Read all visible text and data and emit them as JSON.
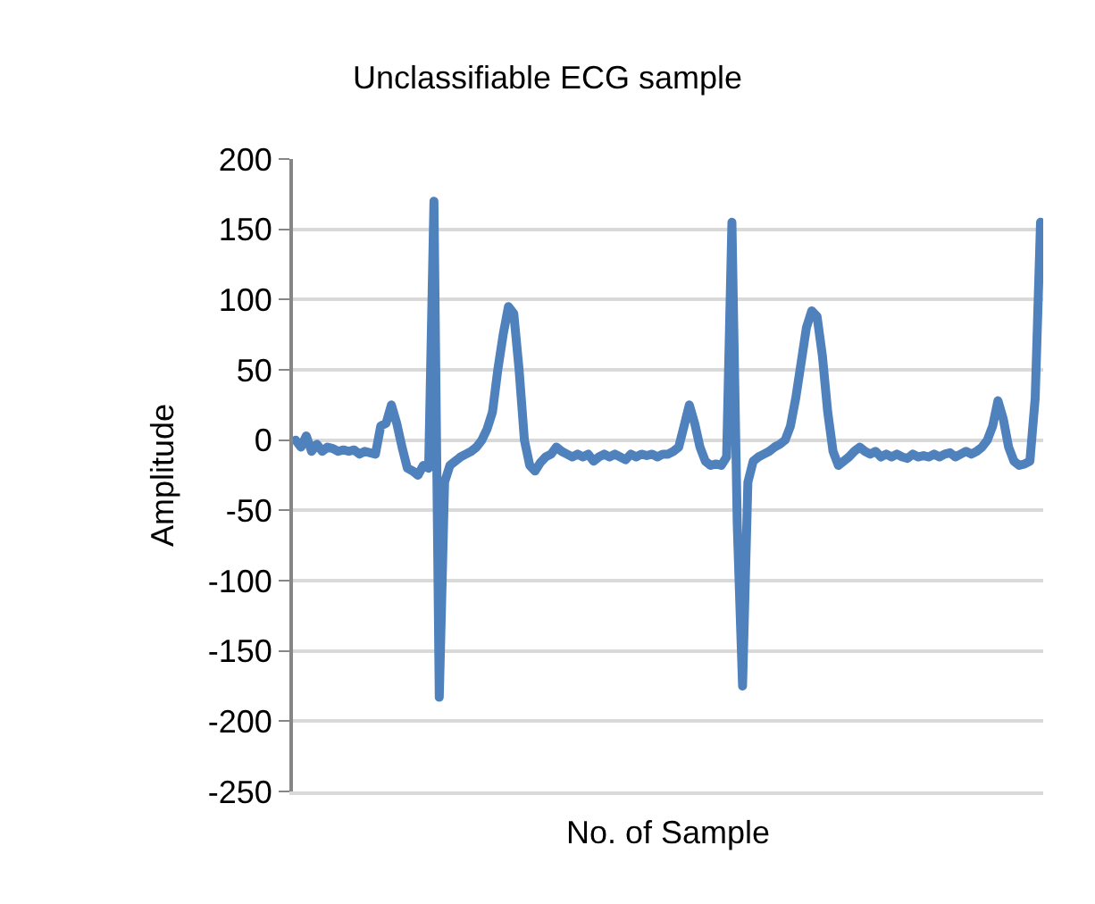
{
  "chart_data": {
    "type": "line",
    "title": "Unclassifiable ECG sample",
    "xlabel": "No. of Sample",
    "ylabel": "Amplitude",
    "categories": [
      null,
      null,
      null,
      null,
      null,
      null,
      null,
      null,
      null,
      null,
      null,
      null,
      null,
      null,
      null,
      null,
      null,
      null,
      null,
      null,
      null,
      null,
      null,
      null,
      null,
      null,
      null,
      null,
      null,
      null,
      null,
      null,
      null,
      null,
      null,
      null,
      null,
      null,
      null,
      null,
      null,
      null,
      null,
      null,
      null,
      null,
      null,
      null,
      null,
      null,
      null,
      null,
      null,
      null,
      null,
      null,
      null,
      null,
      null,
      null,
      null,
      null,
      null,
      null,
      null,
      null,
      null,
      null,
      null,
      null,
      null,
      null,
      null,
      null,
      null,
      null,
      null,
      null,
      null,
      null,
      null,
      null,
      null,
      null,
      null,
      null,
      null,
      null,
      null,
      null,
      null,
      null,
      null,
      null,
      null,
      null,
      null,
      null,
      null,
      null,
      null,
      null,
      null,
      null,
      null,
      null,
      null,
      null,
      null,
      null,
      null,
      null,
      null,
      null,
      null,
      null,
      null,
      null,
      null,
      null,
      null,
      null,
      null,
      null,
      null,
      null,
      null,
      null,
      null,
      null,
      null,
      null,
      null,
      null,
      null,
      null,
      null,
      null,
      null,
      null,
      null
    ],
    "series": [
      {
        "color": "#4f81bd",
        "values": [
          0,
          -5,
          3,
          -8,
          -3,
          -8,
          -5,
          -6,
          -8,
          -7,
          -8,
          -7,
          -10,
          -8,
          -9,
          -10,
          10,
          12,
          25,
          12,
          -5,
          -20,
          -22,
          -25,
          -18,
          -20,
          170,
          -183,
          -30,
          -18,
          -15,
          -12,
          -10,
          -8,
          -5,
          0,
          8,
          20,
          50,
          75,
          95,
          90,
          50,
          0,
          -18,
          -22,
          -16,
          -12,
          -10,
          -5,
          -8,
          -10,
          -12,
          -10,
          -12,
          -10,
          -15,
          -12,
          -10,
          -12,
          -10,
          -12,
          -14,
          -10,
          -12,
          -10,
          -11,
          -10,
          -12,
          -10,
          -10,
          -8,
          -5,
          10,
          25,
          12,
          -5,
          -15,
          -18,
          -17,
          -18,
          -12,
          155,
          -60,
          -175,
          -30,
          -15,
          -12,
          -10,
          -8,
          -5,
          -3,
          0,
          10,
          30,
          55,
          80,
          92,
          88,
          60,
          20,
          -8,
          -18,
          -15,
          -12,
          -8,
          -5,
          -8,
          -10,
          -8,
          -12,
          -10,
          -12,
          -10,
          -12,
          -13,
          -10,
          -12,
          -11,
          -12,
          -10,
          -12,
          -10,
          -9,
          -12,
          -10,
          -8,
          -10,
          -8,
          -5,
          0,
          10,
          28,
          15,
          -5,
          -15,
          -18,
          -17,
          -15,
          30,
          155
        ]
      }
    ],
    "ylim": [
      -250,
      200
    ],
    "yticks": [
      -250,
      -200,
      -150,
      -100,
      -50,
      0,
      50,
      100,
      150,
      200
    ],
    "grid": "y",
    "marker": "none",
    "line_style": "solid"
  }
}
